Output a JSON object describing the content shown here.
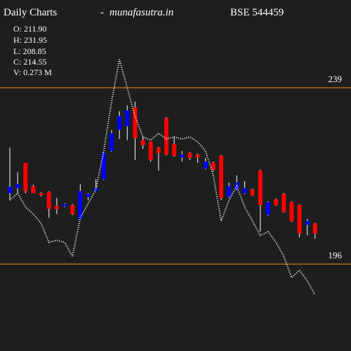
{
  "chart_data": {
    "type": "candlestick",
    "title": "Daily Charts",
    "separator": "-",
    "site": "munafasutra.in",
    "symbol": "BSE 544459",
    "info": [
      "O: 211.90",
      "H: 231.95",
      "L: 208.85",
      "C: 214.55",
      "V: 0.273 M"
    ],
    "ylim": [
      174.8,
      260.4
    ],
    "yticks": [
      239,
      196
    ],
    "tick_color": "#ff8c00",
    "up_color": "#0000ff",
    "down_color": "#ff0000",
    "wick_color": "#ffffff",
    "line_color": "#ffffff",
    "open": [
      213.3,
      214.5,
      220.7,
      215.0,
      213.3,
      213.6,
      210.2,
      210.1,
      210.4,
      207.0,
      212.4,
      213.8,
      216.7,
      223.6,
      228.7,
      229.6,
      234.2,
      226.2,
      225.8,
      224.4,
      231.6,
      225.3,
      222.0,
      223.1,
      222.7,
      219.3,
      220.7,
      222.4,
      212.4,
      214.2,
      213.3,
      214.2,
      218.8,
      208.0,
      211.8,
      213.1,
      211.1,
      210.4,
      205.6,
      205.9
    ],
    "high": [
      224.4,
      218.4,
      220.7,
      215.4,
      213.5,
      213.8,
      212.1,
      210.8,
      210.6,
      215.5,
      213.3,
      216.7,
      223.3,
      228.7,
      233.3,
      234.7,
      235.6,
      227.0,
      225.9,
      224.6,
      231.8,
      227.0,
      223.6,
      223.3,
      222.9,
      221.9,
      221.0,
      222.6,
      215.9,
      217.6,
      216.2,
      214.4,
      219.0,
      211.3,
      212.0,
      213.3,
      211.3,
      210.6,
      207.0,
      206.1
    ],
    "low": [
      211.6,
      213.3,
      213.3,
      213.3,
      212.5,
      207.3,
      208.2,
      209.9,
      208.0,
      207.0,
      211.6,
      213.8,
      216.5,
      223.4,
      226.5,
      226.2,
      221.4,
      224.1,
      221.0,
      218.8,
      222.5,
      222.2,
      221.0,
      221.4,
      220.7,
      219.1,
      218.6,
      211.6,
      212.2,
      214.0,
      213.1,
      212.6,
      203.9,
      207.8,
      210.2,
      208.5,
      206.3,
      202.5,
      203.0,
      202.2
    ],
    "close": [
      214.8,
      215.5,
      213.8,
      213.3,
      212.8,
      209.5,
      209.4,
      210.6,
      208.2,
      213.8,
      213.1,
      214.5,
      223.1,
      227.9,
      232.1,
      233.5,
      226.7,
      225.0,
      221.4,
      223.1,
      222.7,
      222.4,
      222.7,
      221.9,
      222.0,
      221.0,
      219.0,
      212.1,
      215.0,
      215.9,
      214.5,
      212.8,
      210.4,
      211.1,
      210.4,
      208.7,
      206.5,
      203.5,
      206.5,
      203.4
    ],
    "moving_average": [
      211.6,
      213.3,
      209.9,
      208.2,
      205.9,
      201.3,
      201.8,
      201.3,
      197.9,
      207.3,
      210.7,
      214.2,
      223.6,
      235.6,
      245.9,
      239.0,
      232.1,
      227.0,
      226.2,
      227.9,
      226.5,
      227.0,
      226.5,
      227.0,
      225.8,
      223.6,
      217.6,
      206.5,
      211.6,
      215.0,
      209.9,
      206.5,
      203.0,
      203.9,
      201.3,
      197.9,
      192.7,
      194.5,
      191.9,
      188.5
    ]
  }
}
